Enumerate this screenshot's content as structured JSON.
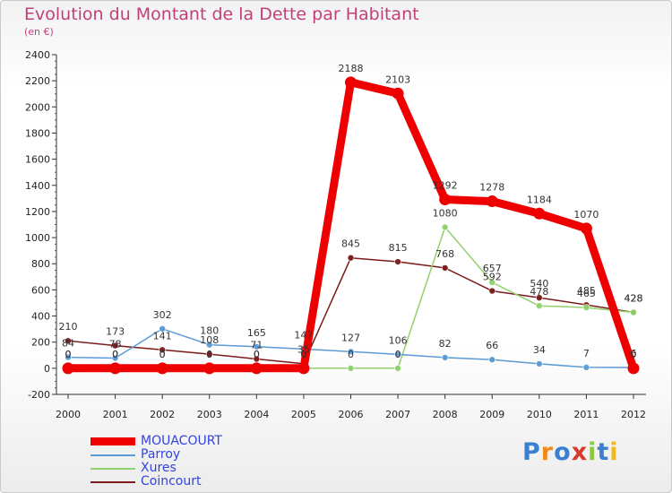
{
  "header": {
    "title": "Evolution du Montant de la Dette par Habitant",
    "subtitle": "(en €)"
  },
  "logo": {
    "text": "Proxiti",
    "colors": [
      "#3a7fd0",
      "#f08a1c",
      "#3a7fd0",
      "#d93a2b",
      "#8dc63f",
      "#3a7fd0",
      "#f0b81c"
    ]
  },
  "chart_data": {
    "type": "line",
    "title": "Evolution du Montant de la Dette par Habitant",
    "ylabel": "(en €)",
    "x": [
      "2000",
      "2001",
      "2002",
      "2003",
      "2004",
      "2005",
      "2006",
      "2007",
      "2008",
      "2009",
      "2010",
      "2011",
      "2012"
    ],
    "ylim": [
      -200,
      2400
    ],
    "yticks": [
      -200,
      0,
      200,
      400,
      600,
      800,
      1000,
      1200,
      1400,
      1600,
      1800,
      2000,
      2200,
      2400
    ],
    "grid": false,
    "legend_position": "bottom-left",
    "series": [
      {
        "name": "MOUACOURT",
        "color": "#ee0000",
        "values": [
          0,
          0,
          0,
          0,
          0,
          0,
          2188,
          2103,
          1292,
          1278,
          1184,
          1070,
          0
        ],
        "labels": [
          "0",
          "0",
          "0",
          "0",
          "0",
          "0",
          "2188",
          "2103",
          "1292",
          "1278",
          "1184",
          "1070",
          "0"
        ]
      },
      {
        "name": "Parroy",
        "color": "#5b9bd5",
        "values": [
          84,
          78,
          302,
          180,
          165,
          147,
          127,
          106,
          82,
          66,
          34,
          7,
          6
        ],
        "labels": [
          "84",
          "78",
          "302",
          "180",
          "165",
          "147",
          "127",
          "106",
          "82",
          "66",
          "34",
          "7",
          "6"
        ]
      },
      {
        "name": "Xures",
        "color": "#8fd16b",
        "values": [
          0,
          0,
          0,
          0,
          0,
          0,
          0,
          0,
          1080,
          657,
          478,
          465,
          428
        ],
        "labels": [
          "0",
          "0",
          "0",
          "0",
          "0",
          "0",
          "0",
          "0",
          "1080",
          "657",
          "478",
          "465",
          "428"
        ]
      },
      {
        "name": "Coincourt",
        "color": "#7a1a1a",
        "values": [
          210,
          173,
          141,
          108,
          71,
          35,
          845,
          815,
          768,
          592,
          540,
          485,
          428
        ],
        "labels": [
          "210",
          "173",
          "141",
          "108",
          "71",
          "35",
          "845",
          "815",
          "768",
          "592",
          "540",
          "485",
          "428"
        ]
      }
    ]
  }
}
